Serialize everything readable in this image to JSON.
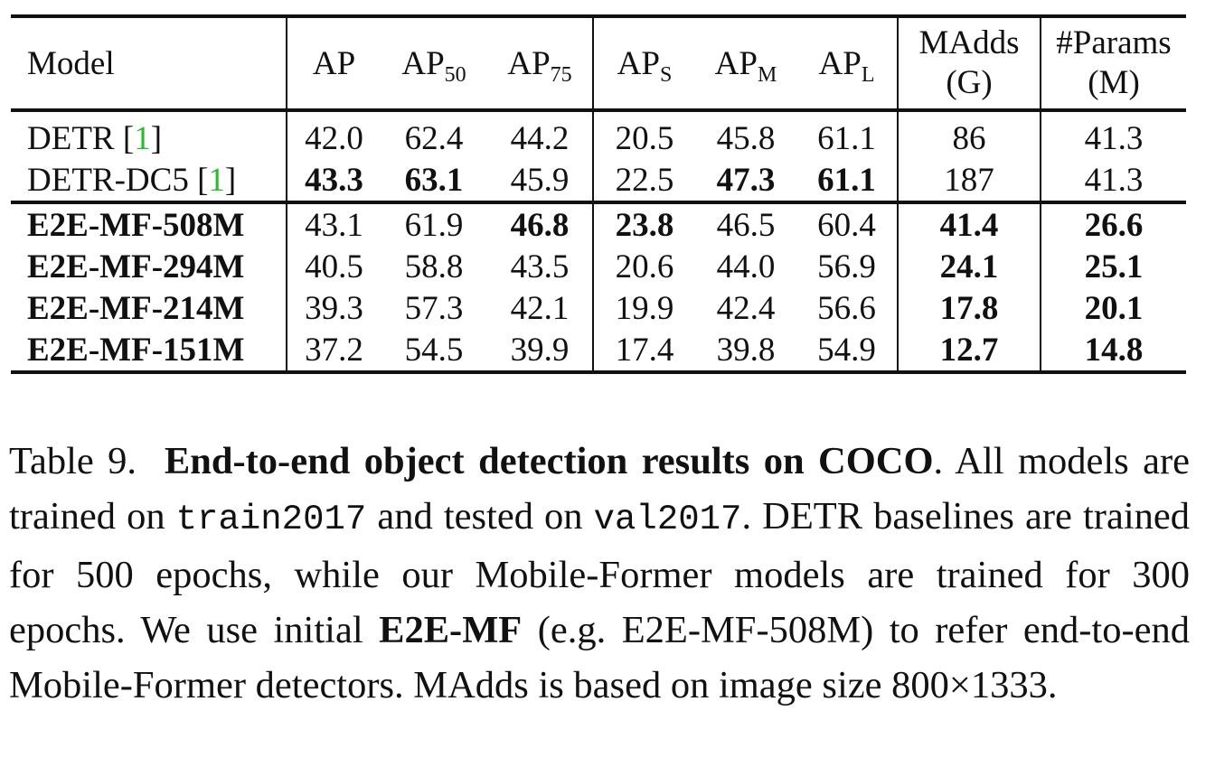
{
  "table": {
    "headers": {
      "model": "Model",
      "ap": "AP",
      "ap50_base": "AP",
      "ap50_sub": "50",
      "ap75_base": "AP",
      "ap75_sub": "75",
      "aps_base": "AP",
      "aps_sub": "S",
      "apm_base": "AP",
      "apm_sub": "M",
      "apl_base": "AP",
      "apl_sub": "L",
      "madds_line1": "MAdds",
      "madds_line2": "(G)",
      "params_line1": "#Params",
      "params_line2": "(M)"
    },
    "rows": [
      {
        "model": "DETR [",
        "cite": "1",
        "close": "]",
        "ap": "42.0",
        "ap50": "62.4",
        "ap75": "44.2",
        "aps": "20.5",
        "apm": "45.8",
        "apl": "61.1",
        "madds": "86",
        "params": "41.3"
      },
      {
        "model": "DETR-DC5 [",
        "cite": "1",
        "close": "]",
        "ap": "43.3",
        "ap50": "63.1",
        "ap75": "45.9",
        "aps": "22.5",
        "apm": "47.3",
        "apl": "61.1",
        "madds": "187",
        "params": "41.3"
      },
      {
        "model": "E2E-MF-508M",
        "ap": "43.1",
        "ap50": "61.9",
        "ap75": "46.8",
        "aps": "23.8",
        "apm": "46.5",
        "apl": "60.4",
        "madds": "41.4",
        "params": "26.6"
      },
      {
        "model": "E2E-MF-294M",
        "ap": "40.5",
        "ap50": "58.8",
        "ap75": "43.5",
        "aps": "20.6",
        "apm": "44.0",
        "apl": "56.9",
        "madds": "24.1",
        "params": "25.1"
      },
      {
        "model": "E2E-MF-214M",
        "ap": "39.3",
        "ap50": "57.3",
        "ap75": "42.1",
        "aps": "19.9",
        "apm": "42.4",
        "apl": "56.6",
        "madds": "17.8",
        "params": "20.1"
      },
      {
        "model": "E2E-MF-151M",
        "ap": "37.2",
        "ap50": "54.5",
        "ap75": "39.9",
        "aps": "17.4",
        "apm": "39.8",
        "apl": "54.9",
        "madds": "12.7",
        "params": "14.8"
      }
    ]
  },
  "caption": {
    "label": "Table 9.",
    "title": "End-to-end object detection results on COCO",
    "s1": ". All models are trained on ",
    "train_set": "train2017",
    "s2": " and tested on ",
    "val_set": "val2017",
    "s3": ". DETR baselines are trained for 500 epochs, while our Mobile-Former models are trained for 300 epochs. We use initial ",
    "abbrev": "E2E-MF",
    "s4": " (e.g. E2E-MF-508M) to refer end-to-end Mobile-Former detectors. MAdds is based on image size 800×1333."
  }
}
